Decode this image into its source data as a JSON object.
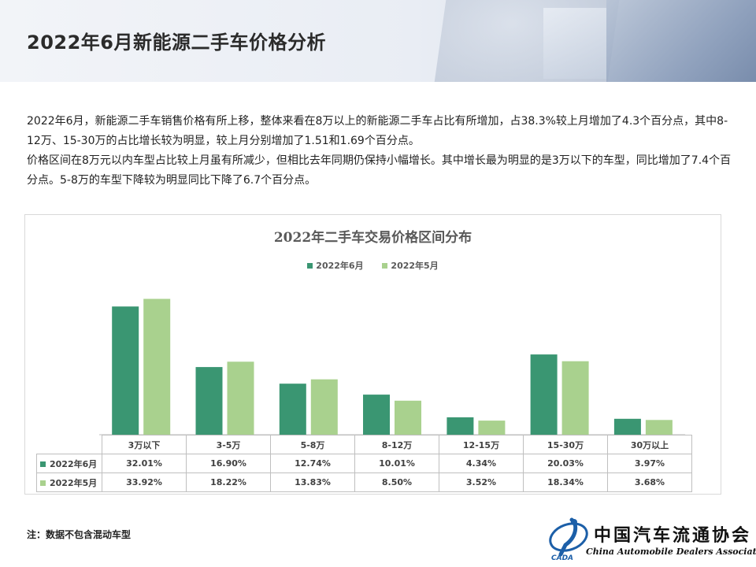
{
  "page": {
    "title": "2022年6月新能源二手车价格分析",
    "paragraphs": [
      "2022年6月，新能源二手车销售价格有所上移，整体来看在8万以上的新能源二手车占比有所增加，占38.3%较上月增加了4.3个百分点，其中8-12万、15-30万的占比增长较为明显，较上月分别增加了1.51和1.69个百分点。",
      "价格区间在8万元以内车型占比较上月虽有所减少，但相比去年同期仍保持小幅增长。其中增长最为明显的是3万以下的车型，同比增加了7.4个百分点。5-8万的车型下降较为明显同比下降了6.7个百分点。"
    ],
    "note": "注：数据不包含混动车型",
    "logo": {
      "name_cn": "中国汽车流通协会",
      "name_en": "China Automobile Dealers Association",
      "mark": "CADA"
    }
  },
  "colors": {
    "june": "#3a9672",
    "may": "#a9d18e"
  },
  "chart_data": {
    "type": "bar",
    "title": "2022年二手车交易价格区间分布",
    "categories": [
      "3万以下",
      "3-5万",
      "5-8万",
      "8-12万",
      "12-15万",
      "15-30万",
      "30万以上"
    ],
    "series": [
      {
        "name": "2022年6月",
        "values": [
          32.01,
          16.9,
          12.74,
          10.01,
          4.34,
          20.03,
          3.97
        ],
        "labels": [
          "32.01%",
          "16.90%",
          "12.74%",
          "10.01%",
          "4.34%",
          "20.03%",
          "3.97%"
        ]
      },
      {
        "name": "2022年5月",
        "values": [
          33.92,
          18.22,
          13.83,
          8.5,
          3.52,
          18.34,
          3.68
        ],
        "labels": [
          "33.92%",
          "18.22%",
          "13.83%",
          "8.50%",
          "3.52%",
          "18.34%",
          "3.68%"
        ]
      }
    ],
    "ylim": [
      0,
      35
    ],
    "legend_position": "top",
    "grid": false,
    "data_table": true
  }
}
